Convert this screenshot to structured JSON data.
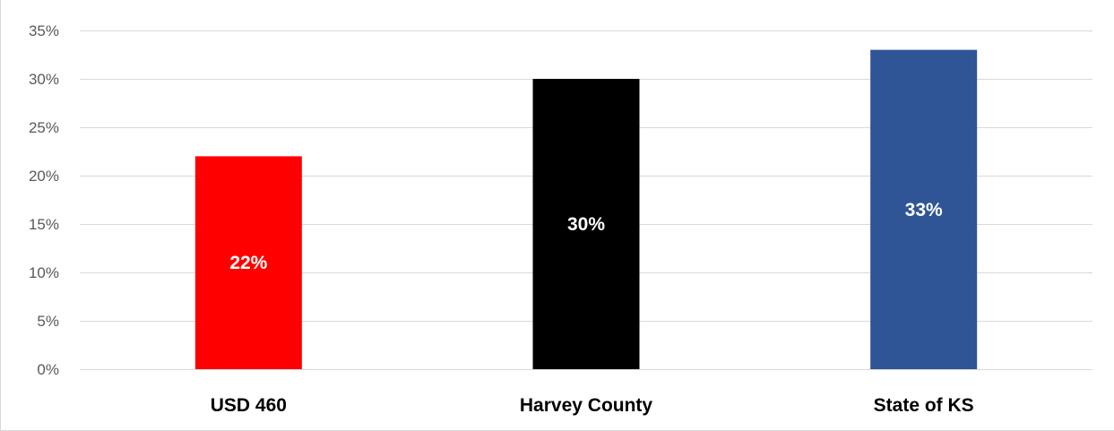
{
  "chart_data": {
    "type": "bar",
    "title": "",
    "xlabel": "",
    "ylabel": "",
    "categories": [
      "USD 460",
      "Harvey County",
      "State of KS"
    ],
    "values": [
      22,
      30,
      33
    ],
    "data_labels": [
      "22%",
      "30%",
      "33%"
    ],
    "colors": [
      "#ff0000",
      "#000000",
      "#2f5597"
    ],
    "ylim": [
      0,
      35
    ],
    "y_ticks": [
      0,
      5,
      10,
      15,
      20,
      25,
      30,
      35
    ],
    "y_tick_labels": [
      "0%",
      "5%",
      "10%",
      "15%",
      "20%",
      "25%",
      "30%",
      "35%"
    ],
    "grid": true,
    "legend": "none"
  }
}
